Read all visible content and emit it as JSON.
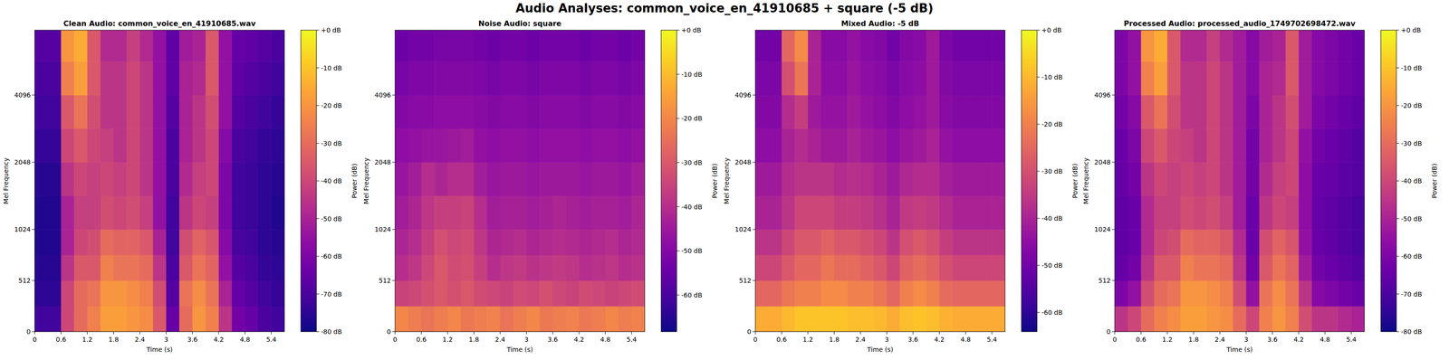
{
  "suptitle": "Audio Analyses: common_voice_en_41910685 + square (-5 dB)",
  "chart_data": [
    {
      "type": "heatmap",
      "title": "Clean Audio: common_voice_en_41910685.wav",
      "x_label": "Time (s)",
      "y_label": "Mel Frequency",
      "xlim": [
        0,
        5.7
      ],
      "xticks": [
        0,
        0.6,
        1.2,
        1.8,
        2.4,
        3,
        3.6,
        4.2,
        4.8,
        5.4
      ],
      "ylim": [
        0,
        8000
      ],
      "yticks": [
        0,
        512,
        1024,
        2048,
        4096
      ],
      "x_bins": [
        0,
        0.3,
        0.6,
        0.9,
        1.2,
        1.5,
        1.8,
        2.1,
        2.4,
        2.7,
        3,
        3.3,
        3.6,
        3.9,
        4.2,
        4.5,
        4.8,
        5.1,
        5.4,
        5.7
      ],
      "y_bins": [
        0,
        256,
        512,
        768,
        1024,
        1450,
        2048,
        2900,
        4096,
        5800,
        8000
      ],
      "cells": [
        [
          -72,
          -72,
          -40,
          -30,
          -25,
          -18,
          -18,
          -20,
          -22,
          -35,
          -65,
          -30,
          -20,
          -25,
          -45,
          -62,
          -65,
          -70,
          -72
        ],
        [
          -75,
          -75,
          -40,
          -30,
          -28,
          -20,
          -20,
          -22,
          -25,
          -38,
          -68,
          -28,
          -22,
          -28,
          -50,
          -65,
          -68,
          -72,
          -74
        ],
        [
          -76,
          -76,
          -45,
          -35,
          -35,
          -25,
          -28,
          -28,
          -30,
          -45,
          -70,
          -35,
          -28,
          -32,
          -55,
          -68,
          -70,
          -74,
          -75
        ],
        [
          -77,
          -77,
          -50,
          -40,
          -38,
          -30,
          -32,
          -32,
          -35,
          -50,
          -72,
          -38,
          -32,
          -36,
          -58,
          -70,
          -72,
          -75,
          -76
        ],
        [
          -77,
          -77,
          -50,
          -42,
          -42,
          -38,
          -40,
          -38,
          -42,
          -55,
          -72,
          -45,
          -40,
          -42,
          -60,
          -72,
          -73,
          -75,
          -77
        ],
        [
          -76,
          -76,
          -45,
          -40,
          -42,
          -40,
          -42,
          -40,
          -45,
          -55,
          -70,
          -48,
          -42,
          -40,
          -60,
          -72,
          -73,
          -75,
          -76
        ],
        [
          -74,
          -74,
          -40,
          -35,
          -40,
          -42,
          -45,
          -40,
          -45,
          -55,
          -70,
          -50,
          -45,
          -40,
          -58,
          -70,
          -72,
          -74,
          -75
        ],
        [
          -72,
          -72,
          -35,
          -28,
          -38,
          -45,
          -45,
          -40,
          -45,
          -55,
          -68,
          -50,
          -45,
          -38,
          -55,
          -68,
          -70,
          -72,
          -74
        ],
        [
          -70,
          -70,
          -25,
          -18,
          -35,
          -45,
          -45,
          -40,
          -45,
          -55,
          -66,
          -50,
          -48,
          -35,
          -55,
          -66,
          -68,
          -70,
          -72
        ],
        [
          -68,
          -68,
          -20,
          -15,
          -35,
          -48,
          -48,
          -42,
          -48,
          -55,
          -66,
          -52,
          -50,
          -35,
          -55,
          -65,
          -66,
          -68,
          -70
        ]
      ],
      "colorbar": {
        "label": "Power (dB)",
        "range": [
          -80,
          0
        ],
        "ticks": [
          {
            "value": -80,
            "label": "-80 dB"
          },
          {
            "value": -70,
            "label": "-70 dB"
          },
          {
            "value": -60,
            "label": "-60 dB"
          },
          {
            "value": -50,
            "label": "-50 dB"
          },
          {
            "value": -40,
            "label": "-40 dB"
          },
          {
            "value": -30,
            "label": "-30 dB"
          },
          {
            "value": -20,
            "label": "-20 dB"
          },
          {
            "value": -10,
            "label": "-10 dB"
          },
          {
            "value": 0,
            "label": "+0 dB"
          }
        ]
      }
    },
    {
      "type": "heatmap",
      "title": "Noise Audio: square",
      "x_label": "Time (s)",
      "y_label": "Mel Frequency",
      "xlim": [
        0,
        5.7
      ],
      "xticks": [
        0,
        0.6,
        1.2,
        1.8,
        2.4,
        3,
        3.6,
        4.2,
        4.8,
        5.4
      ],
      "ylim": [
        0,
        8000
      ],
      "yticks": [
        0,
        512,
        1024,
        2048,
        4096
      ],
      "x_bins": [
        0,
        0.3,
        0.6,
        0.9,
        1.2,
        1.5,
        1.8,
        2.1,
        2.4,
        2.7,
        3,
        3.3,
        3.6,
        3.9,
        4.2,
        4.5,
        4.8,
        5.1,
        5.4,
        5.7
      ],
      "y_bins": [
        0,
        256,
        512,
        768,
        1024,
        1450,
        2048,
        2900,
        4096,
        5800,
        8000
      ],
      "cells": [
        [
          -20,
          -22,
          -24,
          -22,
          -20,
          -23,
          -22,
          -21,
          -24,
          -22,
          -20,
          -23,
          -22,
          -21,
          -23,
          -22,
          -20,
          -22,
          -21
        ],
        [
          -35,
          -34,
          -32,
          -30,
          -32,
          -30,
          -33,
          -34,
          -35,
          -33,
          -34,
          -32,
          -34,
          -35,
          -33,
          -34,
          -35,
          -34,
          -33
        ],
        [
          -40,
          -38,
          -34,
          -30,
          -33,
          -32,
          -36,
          -40,
          -38,
          -37,
          -39,
          -38,
          -37,
          -38,
          -40,
          -39,
          -38,
          -40,
          -39
        ],
        [
          -42,
          -40,
          -36,
          -32,
          -34,
          -33,
          -38,
          -42,
          -41,
          -40,
          -42,
          -41,
          -40,
          -41,
          -42,
          -41,
          -40,
          -42,
          -41
        ],
        [
          -44,
          -42,
          -38,
          -36,
          -36,
          -35,
          -40,
          -44,
          -43,
          -43,
          -44,
          -43,
          -42,
          -43,
          -44,
          -43,
          -43,
          -44,
          -42
        ],
        [
          -46,
          -44,
          -40,
          -42,
          -40,
          -40,
          -44,
          -46,
          -45,
          -45,
          -46,
          -45,
          -45,
          -45,
          -46,
          -45,
          -45,
          -46,
          -44
        ],
        [
          -48,
          -47,
          -46,
          -46,
          -45,
          -44,
          -47,
          -48,
          -47,
          -47,
          -48,
          -47,
          -47,
          -47,
          -48,
          -47,
          -47,
          -48,
          -47
        ],
        [
          -50,
          -49,
          -49,
          -48,
          -48,
          -48,
          -49,
          -50,
          -49,
          -49,
          -50,
          -49,
          -49,
          -49,
          -50,
          -49,
          -49,
          -50,
          -49
        ],
        [
          -52,
          -51,
          -51,
          -50,
          -50,
          -50,
          -51,
          -52,
          -51,
          -51,
          -52,
          -51,
          -51,
          -51,
          -52,
          -51,
          -51,
          -52,
          -51
        ],
        [
          -54,
          -53,
          -53,
          -52,
          -52,
          -52,
          -53,
          -54,
          -53,
          -53,
          -54,
          -53,
          -53,
          -53,
          -54,
          -53,
          -53,
          -54,
          -53
        ]
      ],
      "colorbar": {
        "label": "Power (dB)",
        "range": [
          -68.3,
          0
        ],
        "ticks": [
          {
            "value": -60,
            "label": "-60 dB"
          },
          {
            "value": -50,
            "label": "-50 dB"
          },
          {
            "value": -40,
            "label": "-40 dB"
          },
          {
            "value": -30,
            "label": "-30 dB"
          },
          {
            "value": -20,
            "label": "-20 dB"
          },
          {
            "value": -10,
            "label": "-10 dB"
          },
          {
            "value": 0,
            "label": "+0 dB"
          }
        ]
      }
    },
    {
      "type": "heatmap",
      "title": "Mixed Audio: -5 dB",
      "x_label": "Time (s)",
      "y_label": "Mel Frequency",
      "xlim": [
        0,
        5.7
      ],
      "xticks": [
        0,
        0.6,
        1.2,
        1.8,
        2.4,
        3,
        3.6,
        4.2,
        4.8,
        5.4
      ],
      "ylim": [
        0,
        8000
      ],
      "yticks": [
        0,
        512,
        1024,
        2048,
        4096
      ],
      "x_bins": [
        0,
        0.3,
        0.6,
        0.9,
        1.2,
        1.5,
        1.8,
        2.1,
        2.4,
        2.7,
        3,
        3.3,
        3.6,
        3.9,
        4.2,
        4.5,
        4.8,
        5.1,
        5.4,
        5.7
      ],
      "y_bins": [
        0,
        256,
        512,
        768,
        1024,
        1450,
        2048,
        2900,
        4096,
        5800,
        8000
      ],
      "cells": [
        [
          -12,
          -12,
          -10,
          -8,
          -8,
          -8,
          -8,
          -9,
          -9,
          -10,
          -12,
          -9,
          -8,
          -9,
          -11,
          -12,
          -12,
          -12,
          -12
        ],
        [
          -25,
          -25,
          -22,
          -20,
          -20,
          -18,
          -18,
          -20,
          -20,
          -22,
          -25,
          -20,
          -18,
          -20,
          -24,
          -25,
          -25,
          -25,
          -25
        ],
        [
          -32,
          -32,
          -28,
          -25,
          -25,
          -22,
          -24,
          -24,
          -26,
          -28,
          -32,
          -26,
          -24,
          -26,
          -30,
          -32,
          -32,
          -32,
          -32
        ],
        [
          -36,
          -36,
          -32,
          -28,
          -28,
          -26,
          -28,
          -28,
          -30,
          -32,
          -36,
          -30,
          -28,
          -30,
          -34,
          -36,
          -36,
          -36,
          -36
        ],
        [
          -40,
          -40,
          -36,
          -32,
          -32,
          -32,
          -34,
          -34,
          -35,
          -37,
          -40,
          -35,
          -34,
          -35,
          -38,
          -40,
          -40,
          -40,
          -40
        ],
        [
          -42,
          -42,
          -38,
          -36,
          -36,
          -36,
          -38,
          -37,
          -38,
          -40,
          -42,
          -39,
          -38,
          -38,
          -41,
          -42,
          -42,
          -42,
          -42
        ],
        [
          -45,
          -45,
          -40,
          -38,
          -40,
          -42,
          -42,
          -40,
          -42,
          -43,
          -45,
          -43,
          -42,
          -40,
          -44,
          -45,
          -45,
          -45,
          -45
        ],
        [
          -47,
          -47,
          -38,
          -34,
          -42,
          -44,
          -44,
          -42,
          -44,
          -45,
          -47,
          -45,
          -44,
          -42,
          -46,
          -47,
          -47,
          -47,
          -47
        ],
        [
          -48,
          -48,
          -30,
          -22,
          -40,
          -45,
          -45,
          -43,
          -45,
          -46,
          -48,
          -46,
          -45,
          -42,
          -47,
          -48,
          -48,
          -48,
          -48
        ],
        [
          -50,
          -50,
          -25,
          -18,
          -40,
          -46,
          -46,
          -44,
          -46,
          -47,
          -50,
          -47,
          -46,
          -42,
          -48,
          -50,
          -50,
          -50,
          -50
        ]
      ],
      "colorbar": {
        "label": "Power (dB)",
        "range": [
          -64.1,
          0
        ],
        "ticks": [
          {
            "value": -60,
            "label": "-60 dB"
          },
          {
            "value": -50,
            "label": "-50 dB"
          },
          {
            "value": -40,
            "label": "-40 dB"
          },
          {
            "value": -30,
            "label": "-30 dB"
          },
          {
            "value": -20,
            "label": "-20 dB"
          },
          {
            "value": -10,
            "label": "-10 dB"
          },
          {
            "value": 0,
            "label": "+0 dB"
          }
        ]
      }
    },
    {
      "type": "heatmap",
      "title": "Processed Audio: processed_audio_1749702698472.wav",
      "x_label": "Time (s)",
      "y_label": "Mel Frequency",
      "xlim": [
        0,
        5.7
      ],
      "xticks": [
        0,
        0.6,
        1.2,
        1.8,
        2.4,
        3,
        3.6,
        4.2,
        4.8,
        5.4
      ],
      "ylim": [
        0,
        8000
      ],
      "yticks": [
        0,
        512,
        1024,
        2048,
        4096
      ],
      "x_bins": [
        0,
        0.3,
        0.6,
        0.9,
        1.2,
        1.5,
        1.8,
        2.1,
        2.4,
        2.7,
        3,
        3.3,
        3.6,
        3.9,
        4.2,
        4.5,
        4.8,
        5.1,
        5.4,
        5.7
      ],
      "y_bins": [
        0,
        256,
        512,
        768,
        1024,
        1450,
        2048,
        2900,
        4096,
        5800,
        8000
      ],
      "cells": [
        [
          -45,
          -40,
          -30,
          -25,
          -22,
          -18,
          -18,
          -20,
          -22,
          -30,
          -40,
          -25,
          -20,
          -25,
          -38,
          -45,
          -45,
          -48,
          -50
        ],
        [
          -60,
          -55,
          -38,
          -30,
          -28,
          -20,
          -20,
          -22,
          -25,
          -38,
          -55,
          -28,
          -22,
          -28,
          -45,
          -58,
          -60,
          -62,
          -64
        ],
        [
          -65,
          -62,
          -45,
          -35,
          -35,
          -25,
          -28,
          -28,
          -30,
          -45,
          -62,
          -35,
          -28,
          -32,
          -52,
          -62,
          -64,
          -66,
          -68
        ],
        [
          -66,
          -64,
          -48,
          -40,
          -38,
          -30,
          -32,
          -32,
          -35,
          -48,
          -64,
          -38,
          -32,
          -36,
          -55,
          -64,
          -66,
          -68,
          -70
        ],
        [
          -66,
          -64,
          -48,
          -42,
          -42,
          -38,
          -40,
          -38,
          -42,
          -52,
          -64,
          -45,
          -40,
          -42,
          -56,
          -65,
          -66,
          -68,
          -70
        ],
        [
          -65,
          -62,
          -45,
          -40,
          -42,
          -40,
          -42,
          -40,
          -45,
          -52,
          -62,
          -48,
          -42,
          -40,
          -56,
          -64,
          -65,
          -67,
          -68
        ],
        [
          -64,
          -60,
          -40,
          -35,
          -40,
          -42,
          -45,
          -40,
          -45,
          -52,
          -62,
          -50,
          -45,
          -40,
          -55,
          -62,
          -64,
          -66,
          -68
        ],
        [
          -62,
          -58,
          -35,
          -28,
          -38,
          -45,
          -45,
          -40,
          -45,
          -52,
          -60,
          -50,
          -45,
          -38,
          -52,
          -60,
          -62,
          -64,
          -66
        ],
        [
          -60,
          -55,
          -25,
          -18,
          -35,
          -45,
          -45,
          -40,
          -45,
          -52,
          -58,
          -50,
          -48,
          -35,
          -52,
          -58,
          -60,
          -62,
          -64
        ],
        [
          -60,
          -55,
          -20,
          -15,
          -35,
          -48,
          -48,
          -42,
          -48,
          -52,
          -58,
          -52,
          -50,
          -35,
          -52,
          -58,
          -60,
          -62,
          -64
        ]
      ],
      "colorbar": {
        "label": "Power (dB)",
        "range": [
          -80,
          0
        ],
        "ticks": [
          {
            "value": -80,
            "label": "-80 dB"
          },
          {
            "value": -70,
            "label": "-70 dB"
          },
          {
            "value": -60,
            "label": "-60 dB"
          },
          {
            "value": -50,
            "label": "-50 dB"
          },
          {
            "value": -40,
            "label": "-40 dB"
          },
          {
            "value": -30,
            "label": "-30 dB"
          },
          {
            "value": -20,
            "label": "-20 dB"
          },
          {
            "value": -10,
            "label": "-10 dB"
          },
          {
            "value": 0,
            "label": "+0 dB"
          }
        ]
      }
    }
  ]
}
